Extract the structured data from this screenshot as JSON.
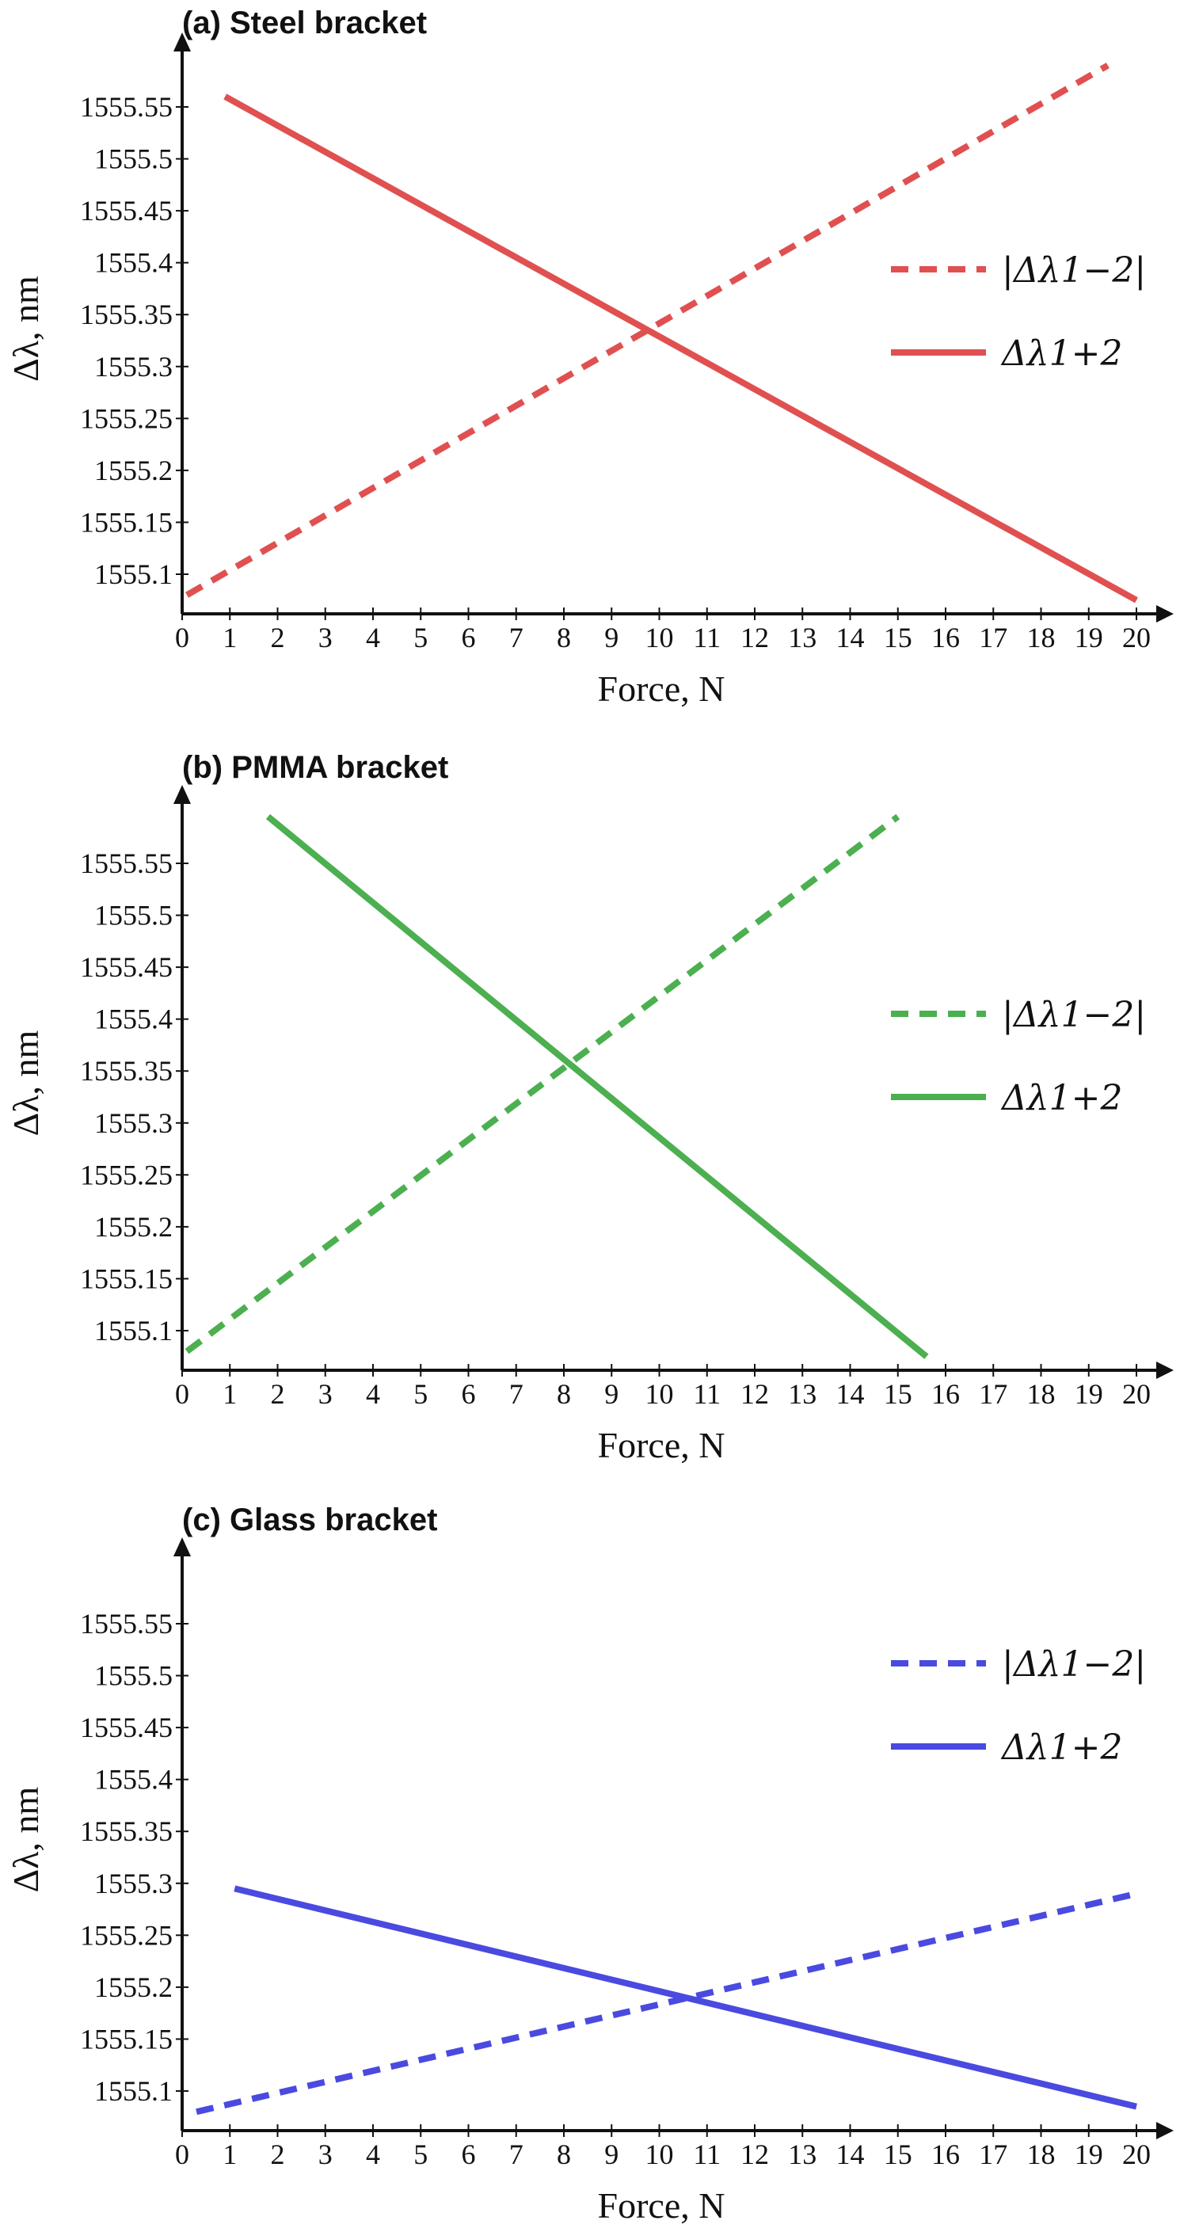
{
  "chart_data": [
    {
      "type": "line",
      "title": "(a) Steel bracket",
      "xlabel": "Force, N",
      "ylabel": "Δλ, nm",
      "x_ticks": [
        "0",
        "1",
        "2",
        "3",
        "4",
        "5",
        "6",
        "7",
        "8",
        "9",
        "10",
        "11",
        "12",
        "13",
        "14",
        "15",
        "16",
        "17",
        "18",
        "19",
        "20"
      ],
      "y_ticks": [
        "1555.1",
        "1555.15",
        "1555.2",
        "1555.25",
        "1555.3",
        "1555.35",
        "1555.4",
        "1555.45",
        "1555.5",
        "1555.55"
      ],
      "xlim": [
        0,
        20
      ],
      "ylim": [
        1555.05,
        1555.62
      ],
      "legend_position": "right",
      "colors": {
        "dashed": "#e05050",
        "solid": "#e05050"
      },
      "series": [
        {
          "name": "|Δλ1−2|",
          "style": "dashed",
          "x": [
            0.1,
            19.4
          ],
          "y": [
            1555.08,
            1555.59
          ]
        },
        {
          "name": "Δλ1+2",
          "style": "solid",
          "x": [
            0.9,
            20.0
          ],
          "y": [
            1555.56,
            1555.075
          ]
        }
      ]
    },
    {
      "type": "line",
      "title": "(b) PMMA bracket",
      "xlabel": "Force, N",
      "ylabel": "Δλ, nm",
      "x_ticks": [
        "0",
        "1",
        "2",
        "3",
        "4",
        "5",
        "6",
        "7",
        "8",
        "9",
        "10",
        "11",
        "12",
        "13",
        "14",
        "15",
        "16",
        "17",
        "18",
        "19",
        "20"
      ],
      "y_ticks": [
        "1555.1",
        "1555.15",
        "1555.2",
        "1555.25",
        "1555.3",
        "1555.35",
        "1555.4",
        "1555.45",
        "1555.5",
        "1555.55"
      ],
      "xlim": [
        0,
        20
      ],
      "ylim": [
        1555.05,
        1555.62
      ],
      "legend_position": "right",
      "colors": {
        "dashed": "#4caf50",
        "solid": "#4caf50"
      },
      "series": [
        {
          "name": "|Δλ1−2|",
          "style": "dashed",
          "x": [
            0.1,
            15.0
          ],
          "y": [
            1555.08,
            1555.595
          ]
        },
        {
          "name": "Δλ1+2",
          "style": "solid",
          "x": [
            1.8,
            15.6
          ],
          "y": [
            1555.595,
            1555.075
          ]
        }
      ]
    },
    {
      "type": "line",
      "title": "(c) Glass bracket",
      "xlabel": "Force, N",
      "ylabel": "Δλ, nm",
      "x_ticks": [
        "0",
        "1",
        "2",
        "3",
        "4",
        "5",
        "6",
        "7",
        "8",
        "9",
        "10",
        "11",
        "12",
        "13",
        "14",
        "15",
        "16",
        "17",
        "18",
        "19",
        "20"
      ],
      "y_ticks": [
        "1555.1",
        "1555.15",
        "1555.2",
        "1555.25",
        "1555.3",
        "1555.35",
        "1555.4",
        "1555.45",
        "1555.5",
        "1555.55"
      ],
      "xlim": [
        0,
        20
      ],
      "ylim": [
        1555.05,
        1555.62
      ],
      "legend_position": "right",
      "colors": {
        "dashed": "#4a4ae0",
        "solid": "#4a4ae0"
      },
      "series": [
        {
          "name": "|Δλ1−2|",
          "style": "dashed",
          "x": [
            0.3,
            20.0
          ],
          "y": [
            1555.08,
            1555.29
          ]
        },
        {
          "name": "Δλ1+2",
          "style": "solid",
          "x": [
            1.1,
            20.0
          ],
          "y": [
            1555.295,
            1555.085
          ]
        }
      ]
    }
  ]
}
